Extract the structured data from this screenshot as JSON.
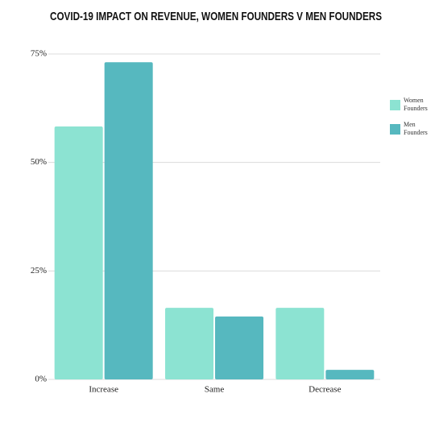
{
  "chart_data": {
    "type": "bar",
    "title": "COVID-19 IMPACT ON REVENUE, WOMEN FOUNDERS V MEN FOUNDERS",
    "categories": [
      "Increase",
      "Same",
      "Decrease"
    ],
    "series": [
      {
        "name": "Women Founders",
        "color": "#8ce3d2",
        "values": [
          58.3,
          16.5,
          16.5
        ]
      },
      {
        "name": "Men Founders",
        "color": "#56b8bf",
        "values": [
          73.1,
          14.5,
          2.2
        ]
      }
    ],
    "ylim": [
      0,
      75
    ],
    "yticks": [
      {
        "value": 0,
        "label": "0%"
      },
      {
        "value": 25,
        "label": "25%"
      },
      {
        "value": 50,
        "label": "50%"
      },
      {
        "value": 75,
        "label": "75%"
      }
    ],
    "grid": true,
    "legend": "right"
  }
}
